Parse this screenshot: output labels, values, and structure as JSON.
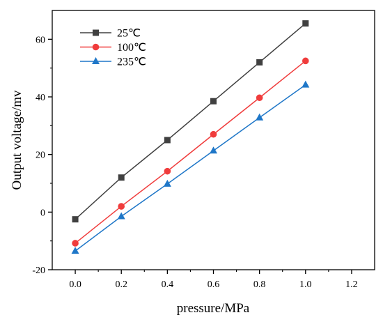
{
  "chart_data": {
    "type": "line",
    "xlabel": "pressure/MPa",
    "ylabel": "Output voltage/mv",
    "xlim": [
      -0.1,
      1.3
    ],
    "ylim": [
      -20,
      70
    ],
    "xticks": [
      "0.0",
      "0.2",
      "0.4",
      "0.6",
      "0.8",
      "1.0",
      "1.2"
    ],
    "yticks": [
      "-20",
      "0",
      "20",
      "40",
      "60"
    ],
    "grid": false,
    "legend_position": "top-left",
    "x": [
      0.0,
      0.2,
      0.4,
      0.6,
      0.8,
      1.0
    ],
    "series": [
      {
        "name": "25℃",
        "color": "#404040",
        "marker": "square",
        "values": [
          -2.5,
          12.0,
          25.0,
          38.5,
          52.0,
          65.5
        ]
      },
      {
        "name": "100℃",
        "color": "#f03c3c",
        "marker": "circle",
        "values": [
          -10.8,
          2.0,
          14.2,
          27.0,
          39.7,
          52.5
        ]
      },
      {
        "name": "235℃",
        "color": "#1f77c8",
        "marker": "triangle",
        "values": [
          -13.5,
          -1.5,
          9.8,
          21.3,
          32.8,
          44.2
        ]
      }
    ]
  }
}
